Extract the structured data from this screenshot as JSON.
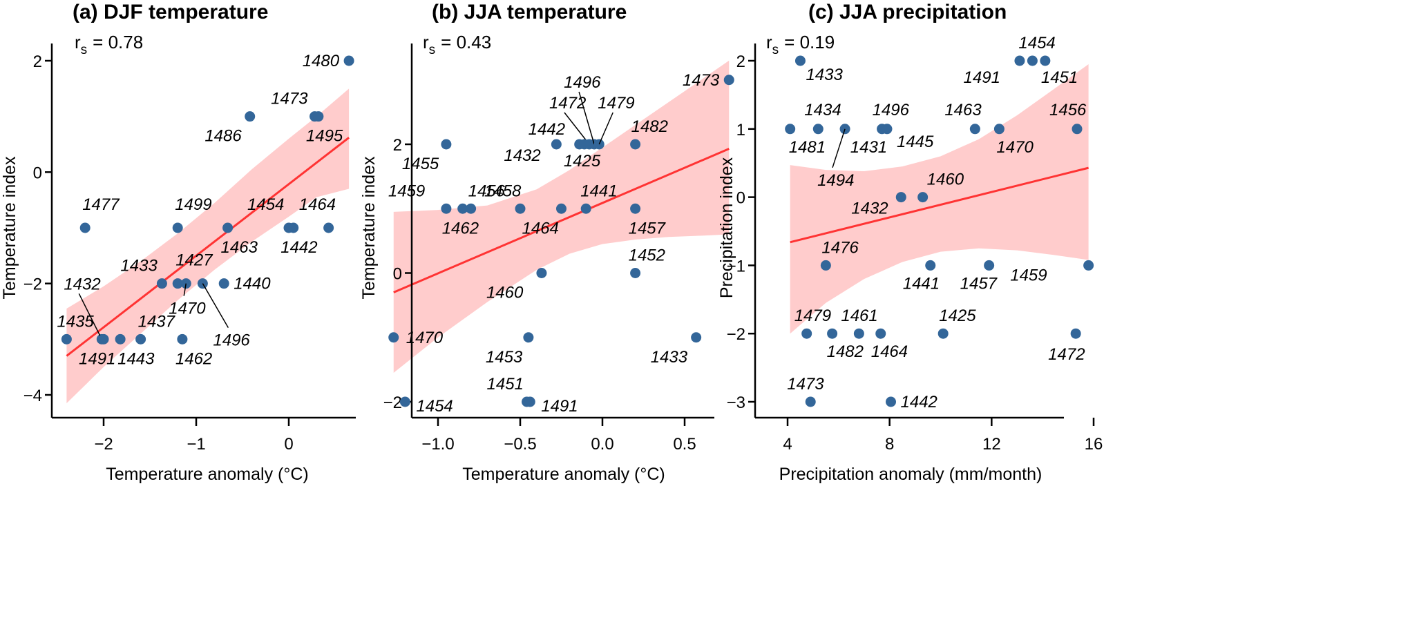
{
  "chart_data": [
    {
      "type": "scatter",
      "id": "a",
      "title": "(a) DJF temperature",
      "stat_label": "r",
      "stat_sub": "s",
      "stat_value": "= 0.78",
      "xlabel": "Temperature anomaly (°C)",
      "ylabel": "Temperature index",
      "xticks": [
        -2,
        -1,
        0
      ],
      "xtick_labels": [
        "−2",
        "−1",
        "0"
      ],
      "yticks": [
        2,
        0,
        -2,
        -4
      ],
      "ytick_labels": [
        "2",
        "0",
        "−2",
        "−4"
      ],
      "xlim": [
        -2.55,
        0.7
      ],
      "ylim": [
        -4.4,
        2.3
      ],
      "regression": {
        "x": [
          -2.4,
          0.65
        ],
        "y": [
          -3.3,
          0.62
        ]
      },
      "confidence_band": {
        "x": [
          -2.4,
          -2.0,
          -1.6,
          -1.2,
          -0.8,
          -0.4,
          0.0,
          0.3,
          0.65
        ],
        "upper": [
          -2.45,
          -2.05,
          -1.6,
          -1.1,
          -0.55,
          0.05,
          0.6,
          1.0,
          1.5
        ],
        "lower": [
          -4.15,
          -3.5,
          -2.9,
          -2.3,
          -1.75,
          -1.25,
          -0.8,
          -0.45,
          -0.3
        ]
      },
      "points": [
        {
          "x": 0.65,
          "y": 2,
          "label": "1480"
        },
        {
          "x": -0.42,
          "y": 1,
          "label": "1486"
        },
        {
          "x": 0.28,
          "y": 1,
          "label": "1473"
        },
        {
          "x": 0.32,
          "y": 1,
          "label": "1495"
        },
        {
          "x": -2.2,
          "y": -1,
          "label": "1477"
        },
        {
          "x": -1.2,
          "y": -1,
          "label": "1499"
        },
        {
          "x": -0.66,
          "y": -1,
          "label": "1463"
        },
        {
          "x": 0.0,
          "y": -1,
          "label": "1454"
        },
        {
          "x": 0.05,
          "y": -1,
          "label": "1464"
        },
        {
          "x": 0.43,
          "y": -1,
          "label": "1442"
        },
        {
          "x": -1.37,
          "y": -2,
          "label": "1433"
        },
        {
          "x": -1.2,
          "y": -2,
          "label": "1427"
        },
        {
          "x": -1.11,
          "y": -2,
          "label": "1470"
        },
        {
          "x": -0.93,
          "y": -2,
          "label": "1496"
        },
        {
          "x": -0.7,
          "y": -2,
          "label": "1440"
        },
        {
          "x": -2.4,
          "y": -3,
          "label": "1435"
        },
        {
          "x": -2.02,
          "y": -3,
          "label": "1432"
        },
        {
          "x": -2.0,
          "y": -3,
          "label": "1491"
        },
        {
          "x": -1.82,
          "y": -3,
          "label": "1443"
        },
        {
          "x": -1.6,
          "y": -3,
          "label": "1437"
        },
        {
          "x": -1.15,
          "y": -3,
          "label": "1462"
        }
      ]
    },
    {
      "type": "scatter",
      "id": "b",
      "title": "(b) JJA temperature",
      "stat_label": "r",
      "stat_sub": "s",
      "stat_value": "= 0.43",
      "xlabel": "Temperature anomaly (°C)",
      "ylabel": "Temperature index",
      "xticks": [
        -1.0,
        -0.5,
        0.0,
        0.5
      ],
      "xtick_labels": [
        "−1.0",
        "−0.5",
        "0.0",
        "0.5"
      ],
      "yticks": [
        2,
        0,
        -2
      ],
      "ytick_labels": [
        "2",
        "0",
        "−2"
      ],
      "xlim": [
        -1.35,
        0.88
      ],
      "ylim": [
        -2.25,
        3.6
      ],
      "regression": {
        "x": [
          -1.27,
          0.77
        ],
        "y": [
          -0.3,
          1.93
        ]
      },
      "confidence_band": {
        "x": [
          -1.27,
          -1.0,
          -0.7,
          -0.4,
          -0.2,
          0.0,
          0.2,
          0.4,
          0.6,
          0.77
        ],
        "upper": [
          0.95,
          0.98,
          1.05,
          1.3,
          1.6,
          1.95,
          2.3,
          2.65,
          3.0,
          3.3
        ],
        "lower": [
          -1.55,
          -1.0,
          -0.45,
          0.05,
          0.3,
          0.45,
          0.52,
          0.56,
          0.58,
          0.6
        ]
      },
      "points": [
        {
          "x": 0.77,
          "y": 3,
          "label": "1473"
        },
        {
          "x": -0.95,
          "y": 2,
          "label": "1455"
        },
        {
          "x": -0.28,
          "y": 2,
          "label": "1432"
        },
        {
          "x": -0.14,
          "y": 2,
          "label": "1442"
        },
        {
          "x": -0.08,
          "y": 2,
          "label": "1472"
        },
        {
          "x": -0.05,
          "y": 2,
          "label": "1496"
        },
        {
          "x": -0.02,
          "y": 2,
          "label": "1479"
        },
        {
          "x": -0.11,
          "y": 2,
          "label": "1425"
        },
        {
          "x": 0.2,
          "y": 2,
          "label": "1482"
        },
        {
          "x": -0.95,
          "y": 1,
          "label": "1459"
        },
        {
          "x": -0.85,
          "y": 1,
          "label": "1462"
        },
        {
          "x": -0.8,
          "y": 1,
          "label": "1456"
        },
        {
          "x": -0.5,
          "y": 1,
          "label": "1458"
        },
        {
          "x": -0.25,
          "y": 1,
          "label": "1464"
        },
        {
          "x": -0.1,
          "y": 1,
          "label": "1441"
        },
        {
          "x": 0.2,
          "y": 1,
          "label": "1457"
        },
        {
          "x": -0.37,
          "y": 0,
          "label": "1460"
        },
        {
          "x": 0.2,
          "y": 0,
          "label": "1452"
        },
        {
          "x": -1.27,
          "y": -1,
          "label": "1470"
        },
        {
          "x": -0.45,
          "y": -1,
          "label": "1453"
        },
        {
          "x": 0.57,
          "y": -1,
          "label": "1433"
        },
        {
          "x": -1.2,
          "y": -2,
          "label": "1454"
        },
        {
          "x": -0.46,
          "y": -2,
          "label": "1451"
        },
        {
          "x": -0.44,
          "y": -2,
          "label": "1491"
        }
      ]
    },
    {
      "type": "scatter",
      "id": "c",
      "title": "(c) JJA precipitation",
      "stat_label": "r",
      "stat_sub": "s",
      "stat_value": "= 0.19",
      "xlabel": "Precipitation anomaly (mm/month)",
      "ylabel": "Precipitation index",
      "xticks": [
        4,
        8,
        12,
        16
      ],
      "xtick_labels": [
        "4",
        "8",
        "12",
        "16"
      ],
      "yticks": [
        2,
        1,
        0,
        -1,
        -2,
        -3
      ],
      "ytick_labels": [
        "2",
        "1",
        "0",
        "−1",
        "−2",
        "−3"
      ],
      "xlim": [
        3.5,
        16.5
      ],
      "ylim": [
        -3.25,
        2.3
      ],
      "regression": {
        "x": [
          4.1,
          15.8
        ],
        "y": [
          -0.66,
          0.43
        ]
      },
      "confidence_band": {
        "x": [
          4.1,
          5.5,
          7.0,
          8.5,
          10.0,
          11.5,
          13.0,
          14.5,
          15.8
        ],
        "upper": [
          0.47,
          0.4,
          0.38,
          0.45,
          0.6,
          0.85,
          1.2,
          1.6,
          1.95
        ],
        "lower": [
          -2.0,
          -1.55,
          -1.2,
          -0.95,
          -0.8,
          -0.75,
          -0.78,
          -0.85,
          -0.92
        ]
      },
      "points": [
        {
          "x": 4.5,
          "y": 2,
          "label": "1433"
        },
        {
          "x": 13.1,
          "y": 2,
          "label": "1491"
        },
        {
          "x": 13.6,
          "y": 2,
          "label": "1454"
        },
        {
          "x": 14.1,
          "y": 2,
          "label": "1451"
        },
        {
          "x": 4.1,
          "y": 1,
          "label": "1481"
        },
        {
          "x": 5.2,
          "y": 1,
          "label": "1434"
        },
        {
          "x": 6.25,
          "y": 1,
          "label": "1494"
        },
        {
          "x": 7.7,
          "y": 1,
          "label": "1496"
        },
        {
          "x": 7.9,
          "y": 1,
          "label": "1445"
        },
        {
          "x": 11.35,
          "y": 1,
          "label": "1463"
        },
        {
          "x": 12.3,
          "y": 1,
          "label": "1470"
        },
        {
          "x": 15.35,
          "y": 1,
          "label": "1456"
        },
        {
          "x": 8.45,
          "y": 0,
          "label": "1432"
        },
        {
          "x": 9.3,
          "y": 0,
          "label": "1460"
        },
        {
          "x": 5.5,
          "y": -1,
          "label": "1476"
        },
        {
          "x": 9.6,
          "y": -1,
          "label": "1441"
        },
        {
          "x": 11.9,
          "y": -1,
          "label": "1457"
        },
        {
          "x": 15.8,
          "y": -1,
          "label": "1459"
        },
        {
          "x": 4.75,
          "y": -2,
          "label": "1479"
        },
        {
          "x": 5.75,
          "y": -2,
          "label": "1482"
        },
        {
          "x": 6.8,
          "y": -2,
          "label": "1461"
        },
        {
          "x": 7.65,
          "y": -2,
          "label": "1464"
        },
        {
          "x": 10.1,
          "y": -2,
          "label": "1425"
        },
        {
          "x": 15.3,
          "y": -2,
          "label": "1472"
        },
        {
          "x": 4.9,
          "y": -3,
          "label": "1473"
        },
        {
          "x": 8.05,
          "y": -3,
          "label": "1442"
        }
      ],
      "label_note": "1431 label shares the 1494 leader cluster at x≈6.25"
    }
  ],
  "colors": {
    "point": "#336699",
    "regression_line": "#ff3333",
    "confidence_band": "#ffcccc",
    "axis": "#000000"
  }
}
